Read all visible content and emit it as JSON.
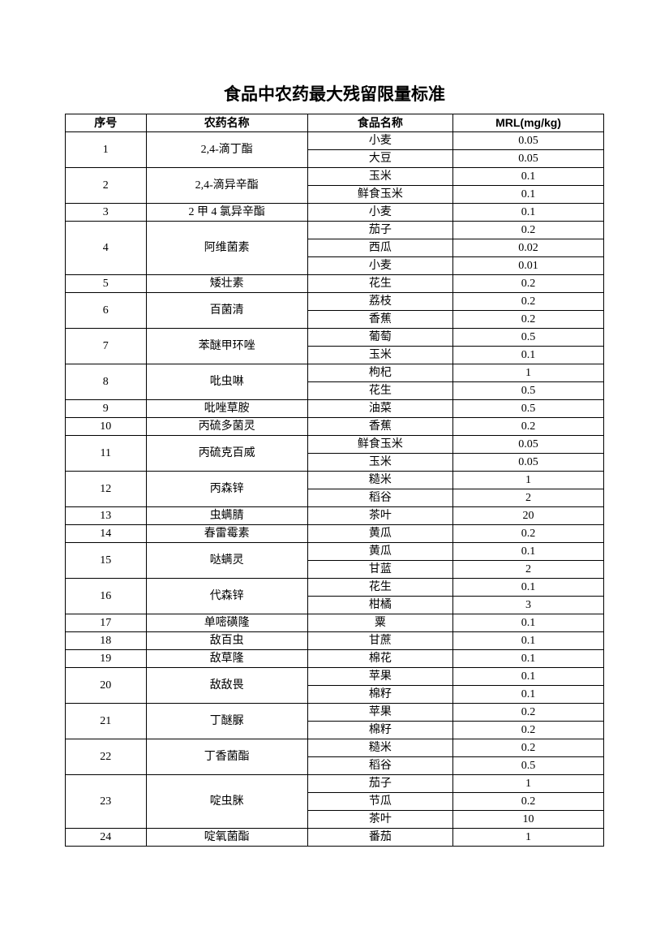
{
  "title": "食品中农药最大残留限量标准",
  "headers": [
    "序号",
    "农药名称",
    "食品名称",
    "MRL(mg/kg)"
  ],
  "groups": [
    {
      "seq": "1",
      "pesticide": "2,4-滴丁酯",
      "items": [
        {
          "food": "小麦",
          "mrl": "0.05"
        },
        {
          "food": "大豆",
          "mrl": "0.05"
        }
      ]
    },
    {
      "seq": "2",
      "pesticide": "2,4-滴异辛酯",
      "items": [
        {
          "food": "玉米",
          "mrl": "0.1"
        },
        {
          "food": "鲜食玉米",
          "mrl": "0.1"
        }
      ]
    },
    {
      "seq": "3",
      "pesticide": "2 甲 4 氯异辛酯",
      "items": [
        {
          "food": "小麦",
          "mrl": "0.1"
        }
      ]
    },
    {
      "seq": "4",
      "pesticide": "阿维菌素",
      "items": [
        {
          "food": "茄子",
          "mrl": "0.2"
        },
        {
          "food": "西瓜",
          "mrl": "0.02"
        },
        {
          "food": "小麦",
          "mrl": "0.01"
        }
      ]
    },
    {
      "seq": "5",
      "pesticide": "矮壮素",
      "items": [
        {
          "food": "花生",
          "mrl": "0.2"
        }
      ]
    },
    {
      "seq": "6",
      "pesticide": "百菌清",
      "items": [
        {
          "food": "荔枝",
          "mrl": "0.2"
        },
        {
          "food": "香蕉",
          "mrl": "0.2"
        }
      ]
    },
    {
      "seq": "7",
      "pesticide": "苯醚甲环唑",
      "items": [
        {
          "food": "葡萄",
          "mrl": "0.5"
        },
        {
          "food": "玉米",
          "mrl": "0.1"
        }
      ]
    },
    {
      "seq": "8",
      "pesticide": "吡虫啉",
      "items": [
        {
          "food": "枸杞",
          "mrl": "1"
        },
        {
          "food": "花生",
          "mrl": "0.5"
        }
      ]
    },
    {
      "seq": "9",
      "pesticide": "吡唑草胺",
      "items": [
        {
          "food": "油菜",
          "mrl": "0.5"
        }
      ]
    },
    {
      "seq": "10",
      "pesticide": "丙硫多菌灵",
      "items": [
        {
          "food": "香蕉",
          "mrl": "0.2"
        }
      ]
    },
    {
      "seq": "11",
      "pesticide": "丙硫克百威",
      "items": [
        {
          "food": "鲜食玉米",
          "mrl": "0.05"
        },
        {
          "food": "玉米",
          "mrl": "0.05"
        }
      ]
    },
    {
      "seq": "12",
      "pesticide": "丙森锌",
      "items": [
        {
          "food": "糙米",
          "mrl": "1"
        },
        {
          "food": "稻谷",
          "mrl": "2"
        }
      ]
    },
    {
      "seq": "13",
      "pesticide": "虫螨腈",
      "items": [
        {
          "food": "茶叶",
          "mrl": "20"
        }
      ]
    },
    {
      "seq": "14",
      "pesticide": "春雷霉素",
      "items": [
        {
          "food": "黄瓜",
          "mrl": "0.2"
        }
      ]
    },
    {
      "seq": "15",
      "pesticide": "哒螨灵",
      "items": [
        {
          "food": "黄瓜",
          "mrl": "0.1"
        },
        {
          "food": "甘蓝",
          "mrl": "2"
        }
      ]
    },
    {
      "seq": "16",
      "pesticide": "代森锌",
      "items": [
        {
          "food": "花生",
          "mrl": "0.1"
        },
        {
          "food": "柑橘",
          "mrl": "3"
        }
      ]
    },
    {
      "seq": "17",
      "pesticide": "单嘧磺隆",
      "items": [
        {
          "food": "粟",
          "mrl": "0.1"
        }
      ]
    },
    {
      "seq": "18",
      "pesticide": "敌百虫",
      "items": [
        {
          "food": "甘蔗",
          "mrl": "0.1"
        }
      ]
    },
    {
      "seq": "19",
      "pesticide": "敌草隆",
      "items": [
        {
          "food": "棉花",
          "mrl": "0.1"
        }
      ]
    },
    {
      "seq": "20",
      "pesticide": "敌敌畏",
      "items": [
        {
          "food": "苹果",
          "mrl": "0.1"
        },
        {
          "food": "棉籽",
          "mrl": "0.1"
        }
      ]
    },
    {
      "seq": "21",
      "pesticide": "丁醚脲",
      "items": [
        {
          "food": "苹果",
          "mrl": "0.2"
        },
        {
          "food": "棉籽",
          "mrl": "0.2"
        }
      ]
    },
    {
      "seq": "22",
      "pesticide": "丁香菌酯",
      "items": [
        {
          "food": "糙米",
          "mrl": "0.2"
        },
        {
          "food": "稻谷",
          "mrl": "0.5"
        }
      ]
    },
    {
      "seq": "23",
      "pesticide": "啶虫脒",
      "items": [
        {
          "food": "茄子",
          "mrl": "1"
        },
        {
          "food": "节瓜",
          "mrl": "0.2"
        },
        {
          "food": "茶叶",
          "mrl": "10"
        }
      ]
    },
    {
      "seq": "24",
      "pesticide": "啶氧菌酯",
      "items": [
        {
          "food": "番茄",
          "mrl": "1"
        }
      ]
    }
  ]
}
